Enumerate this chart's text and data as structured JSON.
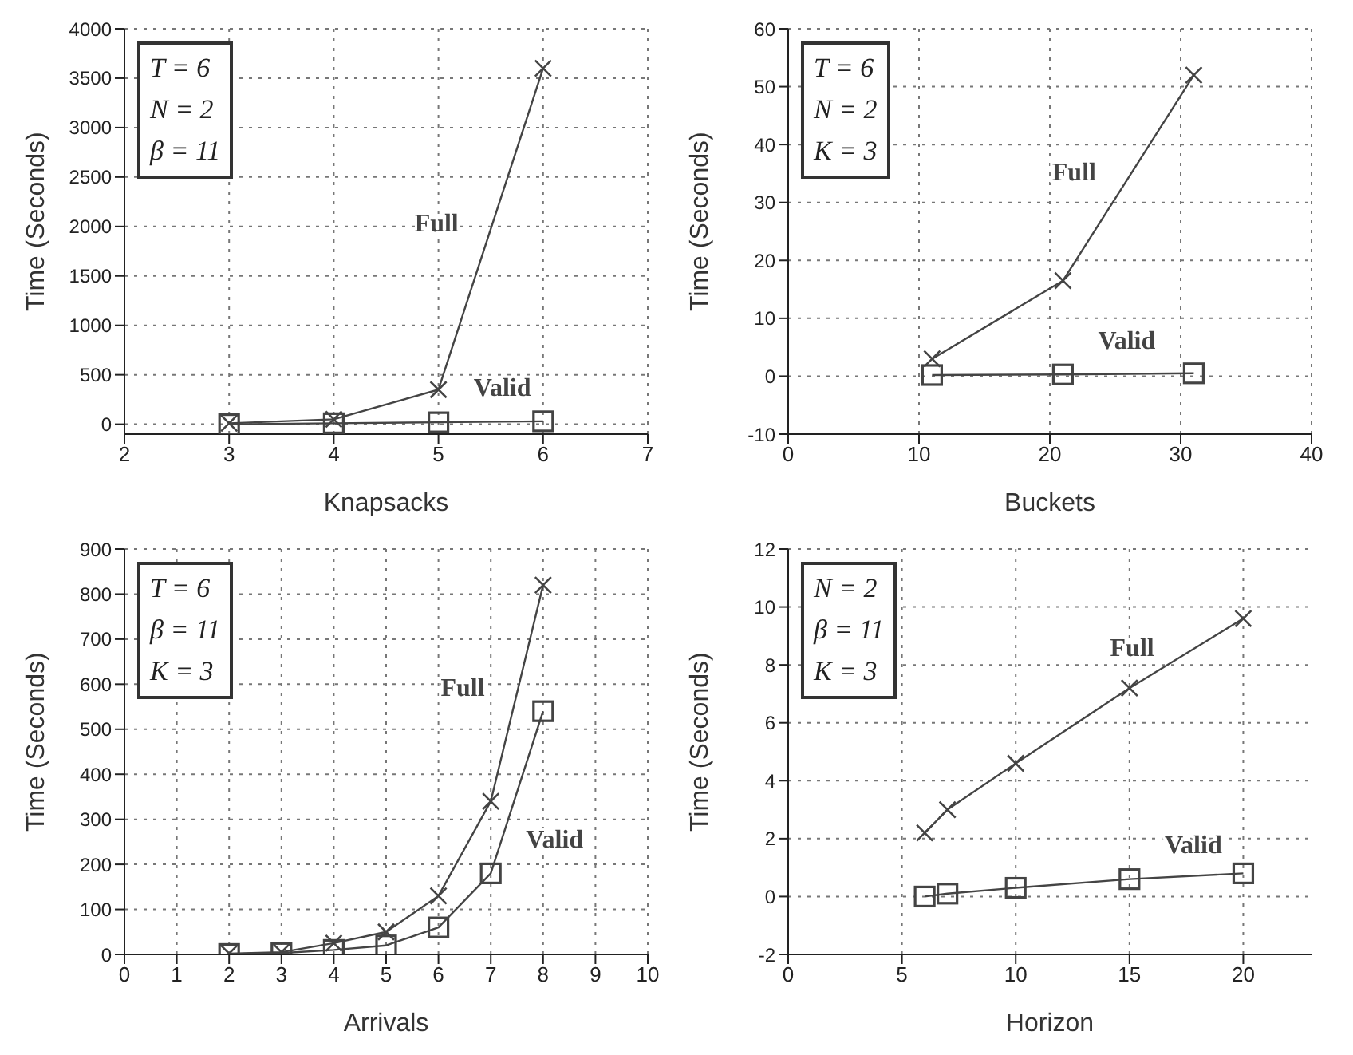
{
  "chart_data": [
    {
      "type": "line",
      "xlabel": "Knapsacks",
      "ylabel": "Time (Seconds)",
      "x": [
        3,
        4,
        5,
        6
      ],
      "xlim": [
        2,
        7
      ],
      "xticks": [
        2,
        3,
        4,
        5,
        6,
        7
      ],
      "ylim": [
        -100,
        4000
      ],
      "yticks": [
        0,
        500,
        1000,
        1500,
        2000,
        2500,
        3000,
        3500,
        4000
      ],
      "grid": true,
      "legend": false,
      "series": [
        {
          "name": "Full",
          "color": "#444444",
          "marker": "cross",
          "values": [
            10,
            50,
            350,
            3600
          ]
        },
        {
          "name": "Valid",
          "color": "#444444",
          "marker": "square",
          "values": [
            0,
            10,
            20,
            30
          ]
        }
      ],
      "annotations": [
        "T = 6",
        "N = 2",
        "β = 11"
      ]
    },
    {
      "type": "line",
      "xlabel": "Buckets",
      "ylabel": "Time (Seconds)",
      "x": [
        11,
        21,
        31
      ],
      "xlim": [
        0,
        40
      ],
      "xticks": [
        0,
        10,
        20,
        30,
        40
      ],
      "ylim": [
        -10,
        60
      ],
      "yticks": [
        -10,
        0,
        10,
        20,
        30,
        40,
        50,
        60
      ],
      "grid": true,
      "legend": false,
      "series": [
        {
          "name": "Full",
          "color": "#444444",
          "marker": "cross",
          "values": [
            3,
            16.5,
            52
          ]
        },
        {
          "name": "Valid",
          "color": "#444444",
          "marker": "square",
          "values": [
            0.2,
            0.3,
            0.5
          ]
        }
      ],
      "annotations": [
        "T = 6",
        "N = 2",
        "K = 3"
      ]
    },
    {
      "type": "line",
      "xlabel": "Arrivals",
      "ylabel": "Time (Seconds)",
      "x": [
        2,
        3,
        4,
        5,
        6,
        7,
        8
      ],
      "xlim": [
        0,
        10
      ],
      "xticks": [
        0,
        1,
        2,
        3,
        4,
        5,
        6,
        7,
        8,
        9,
        10
      ],
      "ylim": [
        0,
        900
      ],
      "yticks": [
        0,
        100,
        200,
        300,
        400,
        500,
        600,
        700,
        800,
        900
      ],
      "grid": true,
      "legend": false,
      "series": [
        {
          "name": "Full",
          "color": "#444444",
          "marker": "cross",
          "values": [
            2,
            5,
            25,
            50,
            130,
            340,
            820
          ]
        },
        {
          "name": "Valid",
          "color": "#444444",
          "marker": "square",
          "values": [
            1,
            3,
            10,
            20,
            60,
            180,
            540
          ]
        }
      ],
      "annotations": [
        "T = 6",
        "β = 11",
        "K = 3"
      ]
    },
    {
      "type": "line",
      "xlabel": "Horizon",
      "ylabel": "Time (Seconds)",
      "x": [
        6,
        7,
        10,
        15,
        20
      ],
      "xlim": [
        0,
        23
      ],
      "xticks": [
        0,
        5,
        10,
        15,
        20
      ],
      "ylim": [
        -2,
        12
      ],
      "yticks": [
        -2,
        0,
        2,
        4,
        6,
        8,
        10,
        12
      ],
      "grid": true,
      "legend": false,
      "series": [
        {
          "name": "Full",
          "color": "#444444",
          "marker": "cross",
          "values": [
            2.2,
            3.0,
            4.6,
            7.2,
            9.6
          ]
        },
        {
          "name": "Valid",
          "color": "#444444",
          "marker": "square",
          "values": [
            0,
            0.1,
            0.3,
            0.6,
            0.8
          ]
        }
      ],
      "annotations": [
        "N = 2",
        "β = 11",
        "K = 3"
      ]
    }
  ]
}
